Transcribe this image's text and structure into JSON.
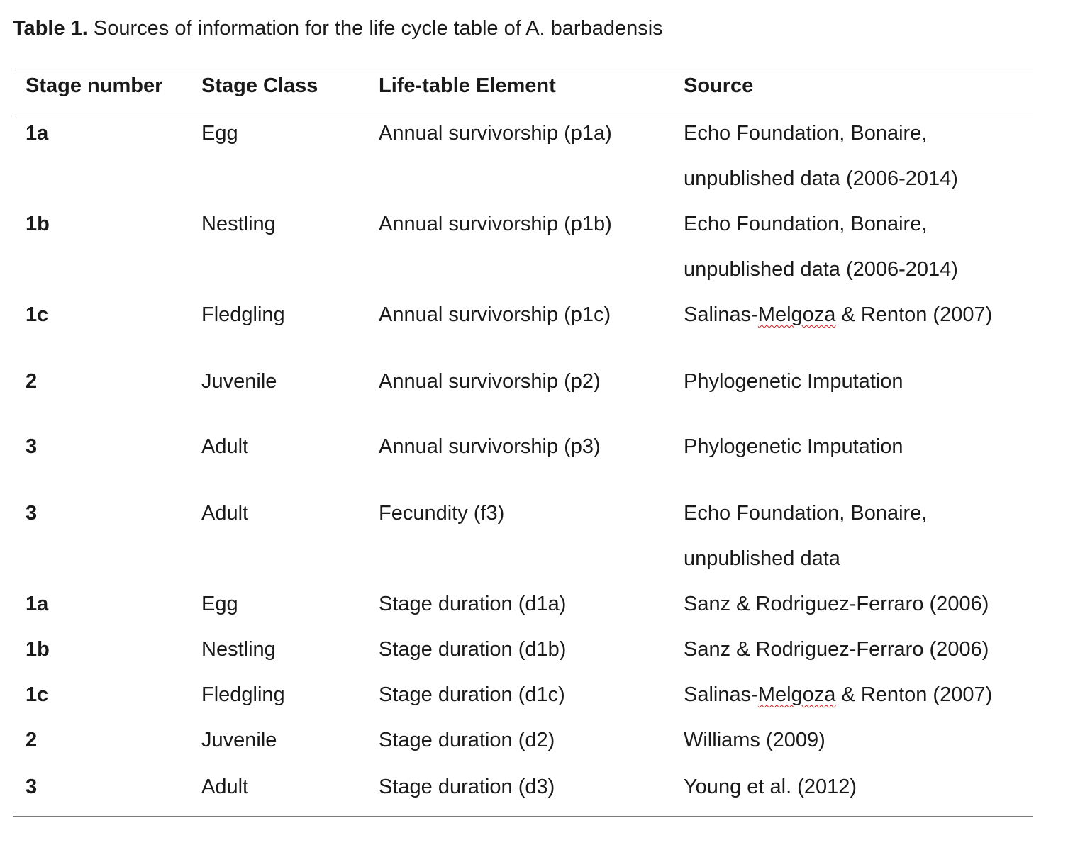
{
  "caption": {
    "label": "Table 1.",
    "text": " Sources of information for the life cycle table of A. barbadensis"
  },
  "table": {
    "headers": [
      "Stage number",
      "Stage Class",
      "Life-table Element",
      "Source"
    ],
    "rows": [
      {
        "stage": "1a",
        "class": "Egg",
        "element": "Annual survivorship (p1a)",
        "source": [
          "Echo Foundation, Bonaire,",
          "unpublished data (2006-2014)"
        ]
      },
      {
        "stage": "1b",
        "class": "Nestling",
        "element": "Annual survivorship (p1b)",
        "source": [
          "Echo Foundation, Bonaire,",
          "unpublished data (2006-2014)"
        ]
      },
      {
        "stage": "1c",
        "class": "Fledgling",
        "element": "Annual survivorship (p1c)",
        "source": [
          "Salinas-Melgoza & Renton (2007)"
        ]
      },
      {
        "stage": "2",
        "class": "Juvenile",
        "element": "Annual survivorship (p2)",
        "source": [
          "Phylogenetic Imputation"
        ]
      },
      {
        "stage": "3",
        "class": "Adult",
        "element": "Annual survivorship (p3)",
        "source": [
          "Phylogenetic Imputation"
        ]
      },
      {
        "stage": "3",
        "class": "Adult",
        "element": "Fecundity (f3)",
        "source": [
          "Echo Foundation, Bonaire,",
          "unpublished data"
        ]
      },
      {
        "stage": "1a",
        "class": "Egg",
        "element": "Stage duration (d1a)",
        "source": [
          "Sanz & Rodriguez-Ferraro (2006)"
        ]
      },
      {
        "stage": "1b",
        "class": "Nestling",
        "element": "Stage duration (d1b)",
        "source": [
          "Sanz & Rodriguez-Ferraro (2006)"
        ]
      },
      {
        "stage": "1c",
        "class": "Fledgling",
        "element": "Stage duration (d1c)",
        "source": [
          "Salinas-Melgoza & Renton (2007)"
        ]
      },
      {
        "stage": "2",
        "class": "Juvenile",
        "element": "Stage duration (d2)",
        "source": [
          "Williams (2009)"
        ]
      },
      {
        "stage": "3",
        "class": "Adult",
        "element": "Stage duration (d3)",
        "source": [
          "Young et al. (2012)"
        ]
      }
    ]
  }
}
